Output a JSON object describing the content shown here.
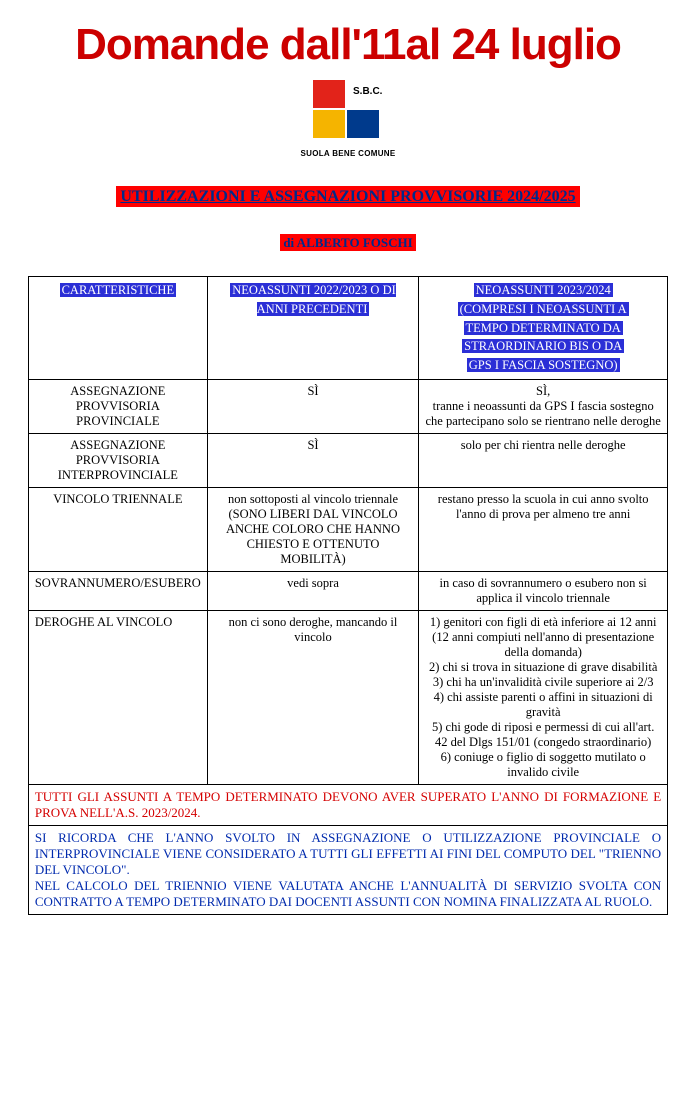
{
  "main_title": "Domande dall'11al 24 luglio",
  "logo": {
    "abbrev": "S.B.C.",
    "caption": "SUOLA BENE COMUNE",
    "colors": {
      "red": "#e2231a",
      "yellow": "#f5b400",
      "blue": "#003a8c"
    }
  },
  "section_title": "UTILIZZAZIONI E ASSEGNAZIONI PROVVISORIE 2024/2025",
  "author": "di ALBERTO FOSCHI",
  "table": {
    "headers": {
      "col1": "CARATTERISTICHE",
      "col2": "NEOASSUNTI 2022/2023 O DI ANNI PRECEDENTI",
      "col3_l1": "NEOASSUNTI 2023/2024",
      "col3_l2": "(COMPRESI I NEOASSUNTI A",
      "col3_l3": "TEMPO DETERMINATO DA",
      "col3_l4": "STRAORDINARIO BIS O DA",
      "col3_l5": "GPS I FASCIA SOSTEGNO)"
    },
    "rows": [
      {
        "label": "ASSEGNAZIONE PROVVISORIA PROVINCIALE",
        "c2": "SÌ",
        "c3": "SÌ,\ntranne i neoassunti da GPS I fascia sostegno che partecipano solo se rientrano nelle deroghe"
      },
      {
        "label": "ASSEGNAZIONE PROVVISORIA INTERPROVINCIALE",
        "c2": "SÌ",
        "c3": "solo per chi rientra nelle deroghe"
      },
      {
        "label": "VINCOLO TRIENNALE",
        "c2": "non sottoposti al vincolo triennale (SONO LIBERI DAL VINCOLO ANCHE COLORO CHE HANNO CHIESTO E OTTENUTO MOBILITÀ)",
        "c3": "restano presso la scuola in cui anno svolto l'anno di prova per almeno tre anni"
      },
      {
        "label": "SOVRANNUMERO/ESUBERO",
        "c2": "vedi sopra",
        "c3": "in caso di sovrannumero o esubero non si applica il vincolo triennale"
      },
      {
        "label": "DEROGHE AL VINCOLO",
        "c2": "non ci sono deroghe, mancando il vincolo",
        "c3": "1) genitori con figli di età inferiore ai 12 anni (12 anni compiuti nell'anno di presentazione della domanda)\n2) chi si trova in situazione di grave disabilità\n3) chi ha un'invalidità civile superiore ai 2/3\n4) chi assiste parenti o affini in situazioni di gravità\n5) chi gode di riposi e permessi di cui all'art. 42 del Dlgs 151/01 (congedo straordinario)\n6) coniuge o figlio di soggetto mutilato o invalido civile"
      }
    ]
  },
  "note_red": "TUTTI GLI ASSUNTI A TEMPO DETERMINATO DEVONO AVER SUPERATO L'ANNO DI FORMAZIONE E PROVA NELL'A.S. 2023/2024.",
  "note_blue": "SI RICORDA CHE L'ANNO SVOLTO IN ASSEGNAZIONE O UTILIZZAZIONE PROVINCIALE O INTERPROVINCIALE VIENE CONSIDERATO A TUTTI GLI EFFETTI AI FINI DEL COMPUTO DEL \"TRIENNO DEL VINCOLO\".\nNEL CALCOLO DEL TRIENNIO VIENE VALUTATA ANCHE L'ANNUALITÀ DI SERVIZIO SVOLTA CON CONTRATTO A TEMPO DETERMINATO DAI DOCENTI ASSUNTI CON NOMINA FINALIZZATA AL RUOLO.",
  "colors": {
    "title_red": "#cc0000",
    "highlight_bg_red": "#ff0000",
    "highlight_fg_blue": "#002a8a",
    "cell_hl_bg": "#2b2fd6",
    "note_red": "#d40000",
    "note_blue": "#002aad"
  }
}
